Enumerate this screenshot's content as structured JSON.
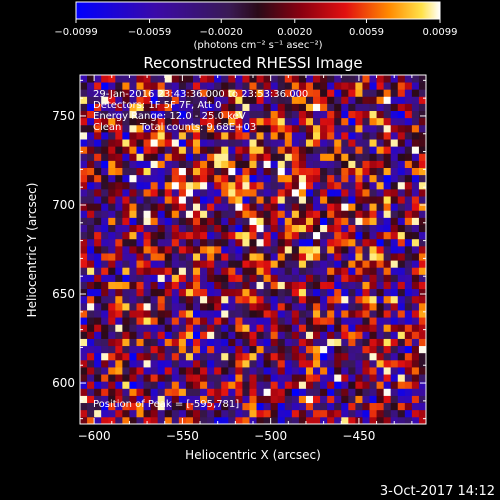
{
  "chart_data": {
    "type": "heatmap",
    "title": "Reconstructed RHESSI Image",
    "xlabel": "Heliocentric X (arcsec)",
    "ylabel": "Heliocentric Y (arcsec)",
    "xlim": [
      -608,
      -412
    ],
    "ylim": [
      577,
      773
    ],
    "x_ticks": [
      -600,
      -550,
      -500,
      -450
    ],
    "x_tick_labels": [
      "−600",
      "−550",
      "−500",
      "−450"
    ],
    "y_ticks": [
      600,
      650,
      700,
      750
    ],
    "y_tick_labels": [
      "600",
      "650",
      "700",
      "750"
    ],
    "grid": false,
    "colorbar": {
      "min": -0.0099,
      "max": 0.0099,
      "ticks": [
        -0.0099,
        -0.0059,
        -0.002,
        0.002,
        0.0059,
        0.0099
      ],
      "tick_labels": [
        "−0.0099",
        "−0.0059",
        "−0.0020",
        "0.0020",
        "0.0059",
        "0.0099"
      ],
      "unit_label": "(photons cm⁻² s⁻¹ asec⁻²)"
    },
    "annotations": {
      "time_range": "29-Jan-2016 23:43:36.000 to 23:53:36.000",
      "detectors": "Detectors: 1F 5F 7F, Att 0",
      "energy_range": "Energy Range: 12.0 - 25.0 keV",
      "clean_label": "Clean",
      "total_counts": "Total counts: 9.68E+03",
      "peak_position": "Position of Peak = [-595,781]"
    },
    "image_model": {
      "description_key": "reconstructed back-projection pattern",
      "bright_center": [
        -505,
        705
      ],
      "pixel_arcsec": 4
    }
  },
  "footer": {
    "timestamp": "3-Oct-2017 14:12"
  }
}
